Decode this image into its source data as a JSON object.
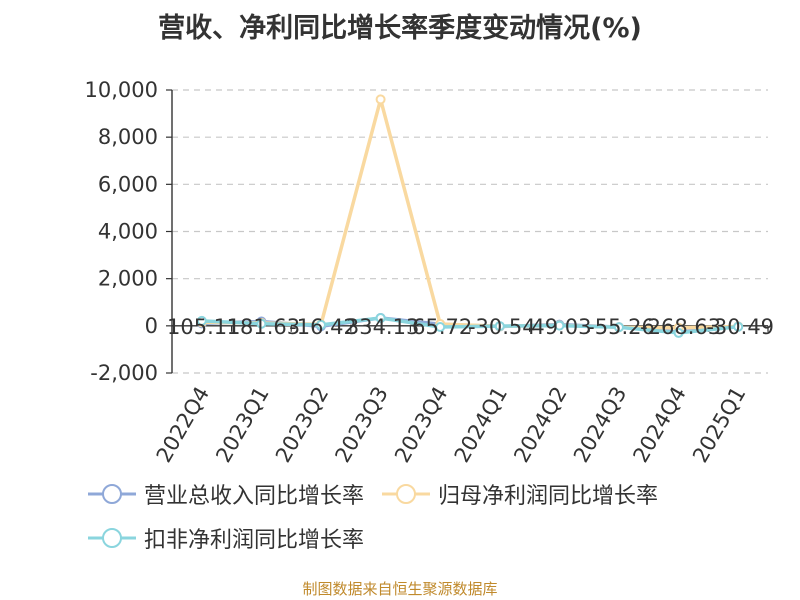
{
  "title": "营收、净利同比增长率季度变动情况(%)",
  "source": "制图数据来自恒生聚源数据库",
  "chart_data": {
    "type": "line",
    "title": "营收、净利同比增长率季度变动情况(%)",
    "categories": [
      "2022Q4",
      "2023Q1",
      "2023Q2",
      "2023Q3",
      "2023Q4",
      "2024Q1",
      "2024Q2",
      "2024Q3",
      "2024Q4",
      "2025Q1"
    ],
    "ylim": [
      -2000,
      10000
    ],
    "yticks": [
      -2000,
      0,
      2000,
      4000,
      6000,
      8000,
      10000
    ],
    "ytick_labels": [
      "-2,000",
      "0",
      "2,000",
      "4,000",
      "6,000",
      "8,000",
      "10,000"
    ],
    "grid": true,
    "legend_position": "bottom",
    "series": [
      {
        "name": "营业总收入同比增长率",
        "color": "#8fa8d8",
        "values": [
          105.11,
          181.63,
          -16.42,
          334.13,
          65.72,
          -30.54,
          49.03,
          -55.26,
          -268.63,
          -30.49
        ],
        "labels": [
          "105.11",
          "181.63",
          "-16.42",
          "334.13",
          "65.72",
          "-30.54",
          "49.03",
          "-55.26",
          "-268.63",
          "-30.49"
        ]
      },
      {
        "name": "归母净利润同比增长率",
        "color": "#f9d9a0",
        "values": [
          150,
          120,
          60,
          9600,
          80,
          -20,
          20,
          -60,
          -80,
          -30
        ]
      },
      {
        "name": "扣非净利润同比增长率",
        "color": "#8ad5de",
        "values": [
          210,
          90,
          40,
          330,
          -50,
          -10,
          10,
          -60,
          -300,
          -40
        ]
      }
    ]
  }
}
